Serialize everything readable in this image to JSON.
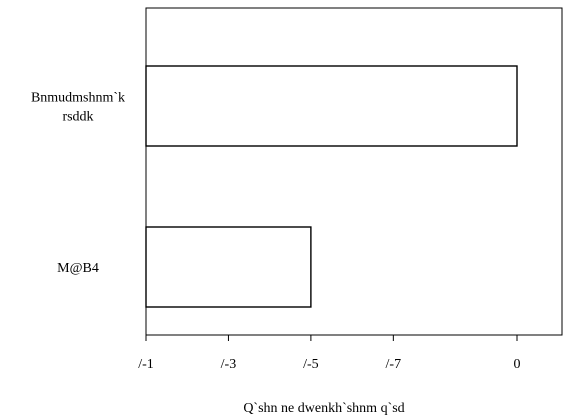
{
  "chart_data": {
    "type": "bar",
    "orientation": "horizontal",
    "categories": [
      [
        "Bnmudmshnm`k",
        "rsddk"
      ],
      [
        "M@B4"
      ]
    ],
    "values": [
      0.9,
      0.4
    ],
    "xlabel": "Q`shn ne dwenkh`shnm q`sd",
    "xticks": [
      {
        "value": 0,
        "label": "/-1"
      },
      {
        "value": 0.2,
        "label": "/-3"
      },
      {
        "value": 0.4,
        "label": "/-5"
      },
      {
        "value": 0.6,
        "label": "/-7"
      },
      {
        "value": 0.9,
        "label": "0"
      }
    ],
    "xlim": [
      0,
      1.0
    ],
    "grid": false,
    "colors": {
      "bar_fill": "#ffffff",
      "bar_stroke": "#000000",
      "axis": "#000000"
    }
  }
}
